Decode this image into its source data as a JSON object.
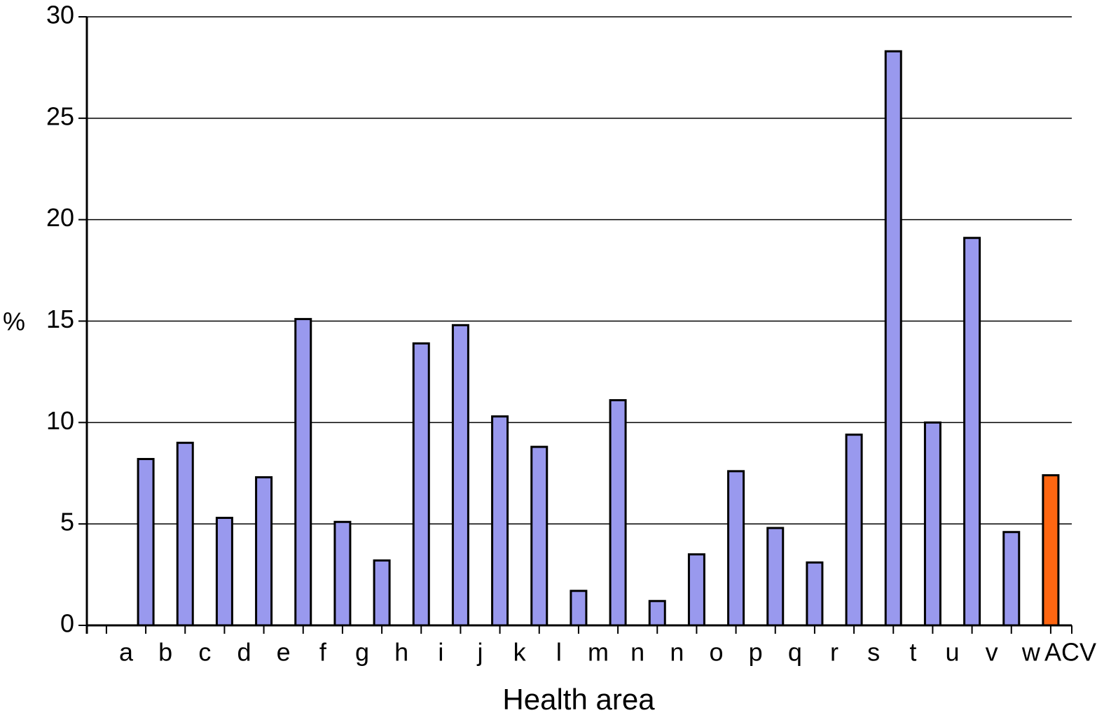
{
  "chart_data": {
    "type": "bar",
    "ylabel": "%",
    "xlabel": "Health area",
    "categories": [
      "a",
      "b",
      "c",
      "d",
      "e",
      "f",
      "g",
      "h",
      "i",
      "j",
      "k",
      "l",
      "m",
      "n",
      "n",
      "o",
      "p",
      "q",
      "r",
      "s",
      "t",
      "u",
      "v",
      "w",
      "ACV"
    ],
    "values": [
      null,
      8.2,
      9.0,
      5.3,
      7.3,
      15.1,
      5.1,
      3.2,
      13.9,
      14.8,
      10.3,
      8.8,
      1.7,
      11.1,
      1.2,
      3.5,
      7.6,
      4.8,
      3.1,
      9.4,
      28.3,
      10.0,
      19.1,
      4.6,
      7.4
    ],
    "colors": [
      "#9999ee",
      "#9999ee",
      "#9999ee",
      "#9999ee",
      "#9999ee",
      "#9999ee",
      "#9999ee",
      "#9999ee",
      "#9999ee",
      "#9999ee",
      "#9999ee",
      "#9999ee",
      "#9999ee",
      "#9999ee",
      "#9999ee",
      "#9999ee",
      "#9999ee",
      "#9999ee",
      "#9999ee",
      "#9999ee",
      "#9999ee",
      "#9999ee",
      "#9999ee",
      "#9999ee",
      "#ff6611"
    ],
    "ylim": [
      0,
      30
    ],
    "yticks": [
      0,
      5,
      10,
      15,
      20,
      25,
      30
    ],
    "grid": true
  }
}
